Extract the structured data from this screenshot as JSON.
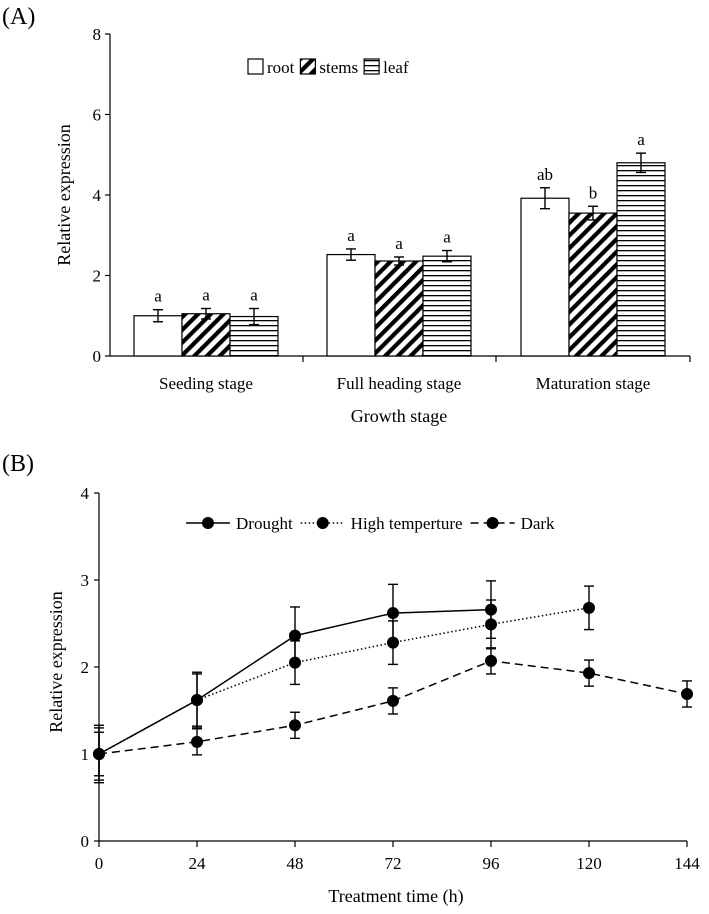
{
  "chart_data": [
    {
      "panel": "(A)",
      "type": "bar",
      "title": "",
      "xlabel": "Growth stage",
      "ylabel": "Relative expression",
      "ylim": [
        0,
        8
      ],
      "yticks": [
        "0",
        "2",
        "4",
        "6",
        "8"
      ],
      "categories": [
        "Seeding stage",
        "Full heading stage",
        "Maturation stage"
      ],
      "legend_position": "top-center",
      "series": [
        {
          "name": "root",
          "pattern": "none",
          "values": [
            1.0,
            2.52,
            3.92
          ],
          "errors": [
            0.15,
            0.14,
            0.26
          ],
          "labels": [
            "a",
            "a",
            "ab"
          ]
        },
        {
          "name": "stems",
          "pattern": "diagonal",
          "values": [
            1.05,
            2.36,
            3.55
          ],
          "errors": [
            0.13,
            0.1,
            0.17
          ],
          "labels": [
            "a",
            "a",
            "b"
          ]
        },
        {
          "name": "leaf",
          "pattern": "horizontal",
          "values": [
            0.98,
            2.48,
            4.8
          ],
          "errors": [
            0.2,
            0.14,
            0.24
          ],
          "labels": [
            "a",
            "a",
            "a"
          ]
        }
      ]
    },
    {
      "panel": "(B)",
      "type": "line",
      "title": "",
      "xlabel": "Treatment time (h)",
      "ylabel": "Relative expression",
      "xlim": [
        0,
        144
      ],
      "ylim": [
        0,
        4
      ],
      "xticks": [
        "0",
        "24",
        "48",
        "72",
        "96",
        "120",
        "144"
      ],
      "yticks": [
        "0",
        "1",
        "2",
        "3",
        "4"
      ],
      "legend_position": "top-center",
      "series": [
        {
          "name": "Drought",
          "style": "solid",
          "x": [
            0,
            24,
            48,
            72,
            96
          ],
          "values": [
            1.0,
            1.62,
            2.36,
            2.62,
            2.66
          ],
          "errors": [
            0.33,
            0.32,
            0.33,
            0.33,
            0.33
          ]
        },
        {
          "name": "High temperture",
          "style": "dotted",
          "x": [
            0,
            24,
            48,
            72,
            96,
            120
          ],
          "values": [
            1.0,
            1.62,
            2.05,
            2.28,
            2.49,
            2.68
          ],
          "errors": [
            0.3,
            0.3,
            0.25,
            0.25,
            0.28,
            0.25
          ]
        },
        {
          "name": "Dark",
          "style": "dashed",
          "x": [
            0,
            24,
            48,
            72,
            96,
            120,
            144
          ],
          "values": [
            1.0,
            1.14,
            1.33,
            1.61,
            2.07,
            1.93,
            1.69
          ],
          "errors": [
            0.25,
            0.15,
            0.15,
            0.15,
            0.15,
            0.15,
            0.15
          ]
        }
      ]
    }
  ]
}
